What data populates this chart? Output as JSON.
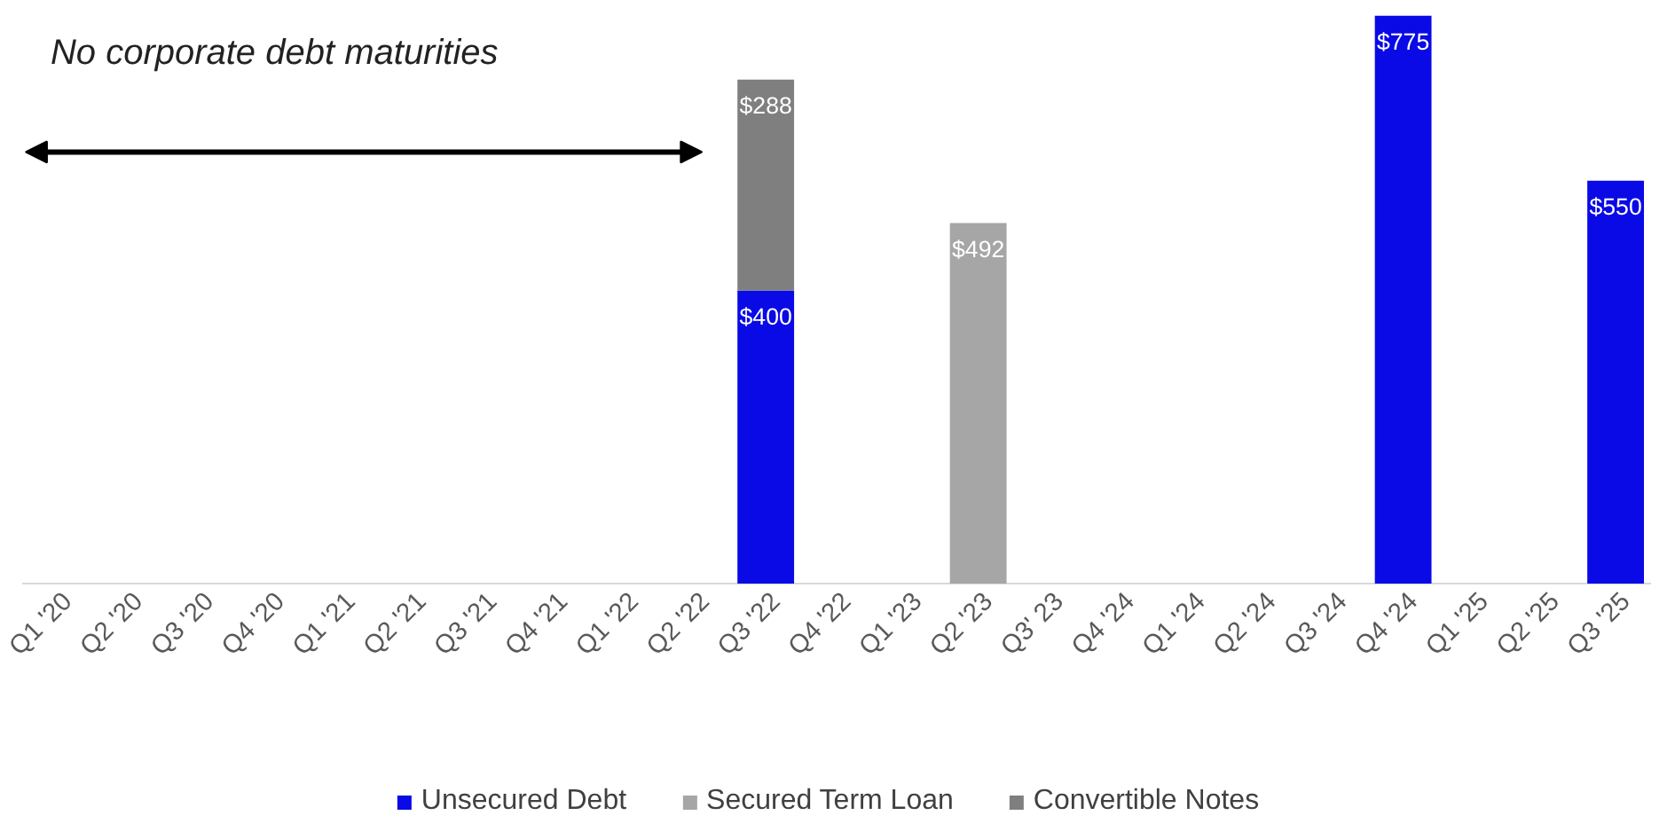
{
  "chart_data": {
    "type": "bar",
    "stacked": true,
    "categories": [
      "Q1 '20",
      "Q2 '20",
      "Q3 '20",
      "Q4 '20",
      "Q1 '21",
      "Q2 '21",
      "Q3 '21",
      "Q4 '21",
      "Q1 '22",
      "Q2 '22",
      "Q3 '22",
      "Q4 '22",
      "Q1 '23",
      "Q2 '23",
      "Q3' 23",
      "Q4 '24",
      "Q1 '24",
      "Q2 '24",
      "Q3 '24",
      "Q4 '24",
      "Q1 '25",
      "Q2 '25",
      "Q3 '25"
    ],
    "series": [
      {
        "name": "Unsecured Debt",
        "color": "#0a0ae6",
        "values": [
          null,
          null,
          null,
          null,
          null,
          null,
          null,
          null,
          null,
          null,
          400,
          null,
          null,
          null,
          null,
          null,
          null,
          null,
          null,
          775,
          null,
          null,
          550
        ],
        "value_labels": [
          null,
          null,
          null,
          null,
          null,
          null,
          null,
          null,
          null,
          null,
          "$400",
          null,
          null,
          null,
          null,
          null,
          null,
          null,
          null,
          "$775",
          null,
          null,
          "$550"
        ]
      },
      {
        "name": "Secured Term Loan",
        "color": "#a6a6a6",
        "values": [
          null,
          null,
          null,
          null,
          null,
          null,
          null,
          null,
          null,
          null,
          null,
          null,
          null,
          492,
          null,
          null,
          null,
          null,
          null,
          null,
          null,
          null,
          null
        ],
        "value_labels": [
          null,
          null,
          null,
          null,
          null,
          null,
          null,
          null,
          null,
          null,
          null,
          null,
          null,
          "$492",
          null,
          null,
          null,
          null,
          null,
          null,
          null,
          null,
          null
        ]
      },
      {
        "name": "Convertible Notes",
        "color": "#7f7f7f",
        "values": [
          null,
          null,
          null,
          null,
          null,
          null,
          null,
          null,
          null,
          null,
          288,
          null,
          null,
          null,
          null,
          null,
          null,
          null,
          null,
          null,
          null,
          null,
          null
        ],
        "value_labels": [
          null,
          null,
          null,
          null,
          null,
          null,
          null,
          null,
          null,
          null,
          "$288",
          null,
          null,
          null,
          null,
          null,
          null,
          null,
          null,
          null,
          null,
          null,
          null
        ]
      }
    ],
    "annotations": [
      "No corporate debt maturities"
    ],
    "legend": "bottom",
    "grid": false
  }
}
